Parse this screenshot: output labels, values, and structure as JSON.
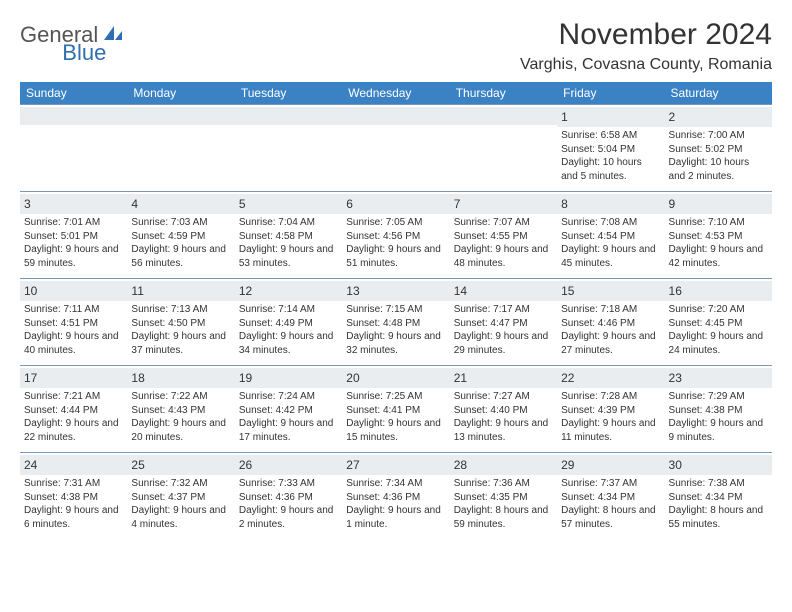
{
  "logo": {
    "part1": "General",
    "part2": "Blue"
  },
  "title": "November 2024",
  "location": "Varghis, Covasna County, Romania",
  "colors": {
    "header_bg": "#3b82c4",
    "header_text": "#ffffff",
    "band_bg": "#e9edf0",
    "border": "#7a99b8",
    "text": "#333333",
    "logo_gray": "#555555",
    "logo_blue": "#2f6fb0",
    "page_bg": "#ffffff"
  },
  "typography": {
    "title_fontsize": 30,
    "location_fontsize": 16,
    "dayheader_fontsize": 12,
    "daynum_fontsize": 12,
    "body_fontsize": 10
  },
  "dayNames": [
    "Sunday",
    "Monday",
    "Tuesday",
    "Wednesday",
    "Thursday",
    "Friday",
    "Saturday"
  ],
  "weeks": [
    [
      {
        "num": "",
        "sunrise": "",
        "sunset": "",
        "daylight": ""
      },
      {
        "num": "",
        "sunrise": "",
        "sunset": "",
        "daylight": ""
      },
      {
        "num": "",
        "sunrise": "",
        "sunset": "",
        "daylight": ""
      },
      {
        "num": "",
        "sunrise": "",
        "sunset": "",
        "daylight": ""
      },
      {
        "num": "",
        "sunrise": "",
        "sunset": "",
        "daylight": ""
      },
      {
        "num": "1",
        "sunrise": "Sunrise: 6:58 AM",
        "sunset": "Sunset: 5:04 PM",
        "daylight": "Daylight: 10 hours and 5 minutes."
      },
      {
        "num": "2",
        "sunrise": "Sunrise: 7:00 AM",
        "sunset": "Sunset: 5:02 PM",
        "daylight": "Daylight: 10 hours and 2 minutes."
      }
    ],
    [
      {
        "num": "3",
        "sunrise": "Sunrise: 7:01 AM",
        "sunset": "Sunset: 5:01 PM",
        "daylight": "Daylight: 9 hours and 59 minutes."
      },
      {
        "num": "4",
        "sunrise": "Sunrise: 7:03 AM",
        "sunset": "Sunset: 4:59 PM",
        "daylight": "Daylight: 9 hours and 56 minutes."
      },
      {
        "num": "5",
        "sunrise": "Sunrise: 7:04 AM",
        "sunset": "Sunset: 4:58 PM",
        "daylight": "Daylight: 9 hours and 53 minutes."
      },
      {
        "num": "6",
        "sunrise": "Sunrise: 7:05 AM",
        "sunset": "Sunset: 4:56 PM",
        "daylight": "Daylight: 9 hours and 51 minutes."
      },
      {
        "num": "7",
        "sunrise": "Sunrise: 7:07 AM",
        "sunset": "Sunset: 4:55 PM",
        "daylight": "Daylight: 9 hours and 48 minutes."
      },
      {
        "num": "8",
        "sunrise": "Sunrise: 7:08 AM",
        "sunset": "Sunset: 4:54 PM",
        "daylight": "Daylight: 9 hours and 45 minutes."
      },
      {
        "num": "9",
        "sunrise": "Sunrise: 7:10 AM",
        "sunset": "Sunset: 4:53 PM",
        "daylight": "Daylight: 9 hours and 42 minutes."
      }
    ],
    [
      {
        "num": "10",
        "sunrise": "Sunrise: 7:11 AM",
        "sunset": "Sunset: 4:51 PM",
        "daylight": "Daylight: 9 hours and 40 minutes."
      },
      {
        "num": "11",
        "sunrise": "Sunrise: 7:13 AM",
        "sunset": "Sunset: 4:50 PM",
        "daylight": "Daylight: 9 hours and 37 minutes."
      },
      {
        "num": "12",
        "sunrise": "Sunrise: 7:14 AM",
        "sunset": "Sunset: 4:49 PM",
        "daylight": "Daylight: 9 hours and 34 minutes."
      },
      {
        "num": "13",
        "sunrise": "Sunrise: 7:15 AM",
        "sunset": "Sunset: 4:48 PM",
        "daylight": "Daylight: 9 hours and 32 minutes."
      },
      {
        "num": "14",
        "sunrise": "Sunrise: 7:17 AM",
        "sunset": "Sunset: 4:47 PM",
        "daylight": "Daylight: 9 hours and 29 minutes."
      },
      {
        "num": "15",
        "sunrise": "Sunrise: 7:18 AM",
        "sunset": "Sunset: 4:46 PM",
        "daylight": "Daylight: 9 hours and 27 minutes."
      },
      {
        "num": "16",
        "sunrise": "Sunrise: 7:20 AM",
        "sunset": "Sunset: 4:45 PM",
        "daylight": "Daylight: 9 hours and 24 minutes."
      }
    ],
    [
      {
        "num": "17",
        "sunrise": "Sunrise: 7:21 AM",
        "sunset": "Sunset: 4:44 PM",
        "daylight": "Daylight: 9 hours and 22 minutes."
      },
      {
        "num": "18",
        "sunrise": "Sunrise: 7:22 AM",
        "sunset": "Sunset: 4:43 PM",
        "daylight": "Daylight: 9 hours and 20 minutes."
      },
      {
        "num": "19",
        "sunrise": "Sunrise: 7:24 AM",
        "sunset": "Sunset: 4:42 PM",
        "daylight": "Daylight: 9 hours and 17 minutes."
      },
      {
        "num": "20",
        "sunrise": "Sunrise: 7:25 AM",
        "sunset": "Sunset: 4:41 PM",
        "daylight": "Daylight: 9 hours and 15 minutes."
      },
      {
        "num": "21",
        "sunrise": "Sunrise: 7:27 AM",
        "sunset": "Sunset: 4:40 PM",
        "daylight": "Daylight: 9 hours and 13 minutes."
      },
      {
        "num": "22",
        "sunrise": "Sunrise: 7:28 AM",
        "sunset": "Sunset: 4:39 PM",
        "daylight": "Daylight: 9 hours and 11 minutes."
      },
      {
        "num": "23",
        "sunrise": "Sunrise: 7:29 AM",
        "sunset": "Sunset: 4:38 PM",
        "daylight": "Daylight: 9 hours and 9 minutes."
      }
    ],
    [
      {
        "num": "24",
        "sunrise": "Sunrise: 7:31 AM",
        "sunset": "Sunset: 4:38 PM",
        "daylight": "Daylight: 9 hours and 6 minutes."
      },
      {
        "num": "25",
        "sunrise": "Sunrise: 7:32 AM",
        "sunset": "Sunset: 4:37 PM",
        "daylight": "Daylight: 9 hours and 4 minutes."
      },
      {
        "num": "26",
        "sunrise": "Sunrise: 7:33 AM",
        "sunset": "Sunset: 4:36 PM",
        "daylight": "Daylight: 9 hours and 2 minutes."
      },
      {
        "num": "27",
        "sunrise": "Sunrise: 7:34 AM",
        "sunset": "Sunset: 4:36 PM",
        "daylight": "Daylight: 9 hours and 1 minute."
      },
      {
        "num": "28",
        "sunrise": "Sunrise: 7:36 AM",
        "sunset": "Sunset: 4:35 PM",
        "daylight": "Daylight: 8 hours and 59 minutes."
      },
      {
        "num": "29",
        "sunrise": "Sunrise: 7:37 AM",
        "sunset": "Sunset: 4:34 PM",
        "daylight": "Daylight: 8 hours and 57 minutes."
      },
      {
        "num": "30",
        "sunrise": "Sunrise: 7:38 AM",
        "sunset": "Sunset: 4:34 PM",
        "daylight": "Daylight: 8 hours and 55 minutes."
      }
    ]
  ]
}
